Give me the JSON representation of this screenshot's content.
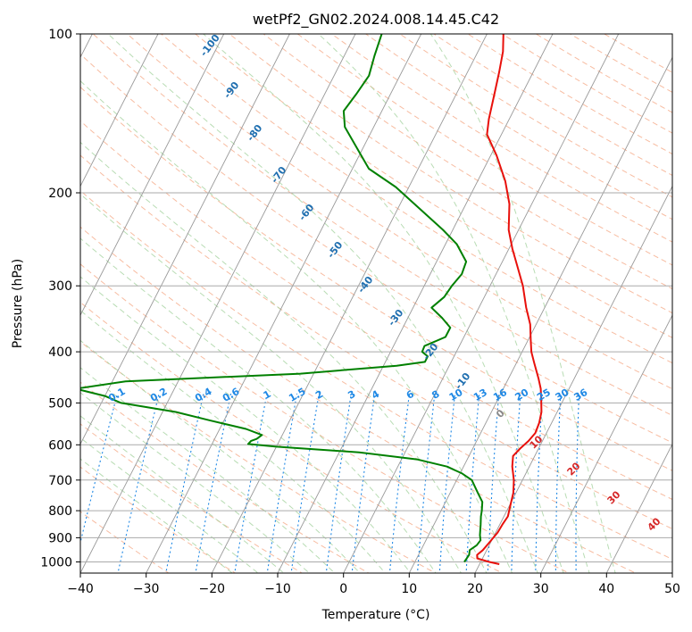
{
  "chart_data": {
    "type": "line",
    "subtype": "skew-t log-p diagram",
    "title": "wetPf2_GN02.2024.008.14.45.C42",
    "xlabel": "Temperature (°C)",
    "ylabel": "Pressure (hPa)",
    "xlim": [
      -40,
      50
    ],
    "ylim": [
      1050,
      100
    ],
    "y_scale": "log",
    "x_ticks": [
      -40,
      -30,
      -20,
      -10,
      0,
      10,
      20,
      30,
      40,
      50
    ],
    "x_tick_labels": [
      "−40",
      "−30",
      "−20",
      "−10",
      "0",
      "10",
      "20",
      "30",
      "40",
      "50"
    ],
    "y_ticks": [
      100,
      200,
      300,
      400,
      500,
      600,
      700,
      800,
      900,
      1000
    ],
    "y_tick_labels": [
      "100",
      "200",
      "300",
      "400",
      "500",
      "600",
      "700",
      "800",
      "900",
      "1000"
    ],
    "grid": true,
    "series": [
      {
        "role": "temperature",
        "color": "#e8100b",
        "points": [
          [
            1010,
            23
          ],
          [
            1000,
            21.3
          ],
          [
            985,
            19.2
          ],
          [
            970,
            18.9
          ],
          [
            950,
            19.4
          ],
          [
            920,
            19.8
          ],
          [
            880,
            20.3
          ],
          [
            850,
            20.4
          ],
          [
            820,
            20.6
          ],
          [
            780,
            20.1
          ],
          [
            740,
            19.6
          ],
          [
            700,
            18.7
          ],
          [
            660,
            17.4
          ],
          [
            630,
            16.7
          ],
          [
            610,
            17.2
          ],
          [
            590,
            17.9
          ],
          [
            570,
            18.3
          ],
          [
            545,
            18.1
          ],
          [
            520,
            17.6
          ],
          [
            490,
            16.5
          ],
          [
            470,
            15.7
          ],
          [
            450,
            14.6
          ],
          [
            420,
            12.7
          ],
          [
            400,
            11.4
          ],
          [
            380,
            10.4
          ],
          [
            355,
            9.1
          ],
          [
            330,
            7.2
          ],
          [
            300,
            5.0
          ],
          [
            275,
            2.6
          ],
          [
            255,
            0.5
          ],
          [
            235,
            -1.5
          ],
          [
            210,
            -3.4
          ],
          [
            190,
            -5.8
          ],
          [
            170,
            -9.1
          ],
          [
            155,
            -12.2
          ],
          [
            145,
            -13.1
          ],
          [
            130,
            -14.2
          ],
          [
            118,
            -15.2
          ],
          [
            108,
            -16.2
          ],
          [
            100,
            -17.5
          ]
        ]
      },
      {
        "role": "dewpoint",
        "color": "#008000",
        "points": [
          [
            1000,
            17.5
          ],
          [
            970,
            17.7
          ],
          [
            950,
            17.4
          ],
          [
            930,
            18.1
          ],
          [
            910,
            18.3
          ],
          [
            890,
            17.8
          ],
          [
            850,
            17.1
          ],
          [
            820,
            16.5
          ],
          [
            800,
            16.2
          ],
          [
            770,
            15.6
          ],
          [
            740,
            14.2
          ],
          [
            700,
            12.3
          ],
          [
            680,
            10.3
          ],
          [
            660,
            7.5
          ],
          [
            640,
            2.5
          ],
          [
            620,
            -7
          ],
          [
            605,
            -20
          ],
          [
            598,
            -24.5
          ],
          [
            590,
            -24.3
          ],
          [
            585,
            -23.6
          ],
          [
            575,
            -23.1
          ],
          [
            560,
            -26
          ],
          [
            540,
            -32
          ],
          [
            520,
            -38
          ],
          [
            500,
            -47
          ],
          [
            485,
            -50
          ],
          [
            470,
            -55
          ],
          [
            455,
            -48
          ],
          [
            440,
            -22
          ],
          [
            425,
            -8
          ],
          [
            418,
            -4
          ],
          [
            408,
            -4
          ],
          [
            400,
            -5.2
          ],
          [
            390,
            -5.3
          ],
          [
            375,
            -2.8
          ],
          [
            360,
            -2.8
          ],
          [
            345,
            -4.8
          ],
          [
            330,
            -7.2
          ],
          [
            315,
            -6.1
          ],
          [
            300,
            -5.8
          ],
          [
            285,
            -5.2
          ],
          [
            270,
            -5.5
          ],
          [
            250,
            -8.3
          ],
          [
            235,
            -11.5
          ],
          [
            215,
            -16.5
          ],
          [
            195,
            -22
          ],
          [
            180,
            -27.5
          ],
          [
            165,
            -30.8
          ],
          [
            150,
            -34.4
          ],
          [
            140,
            -35.8
          ],
          [
            130,
            -35.2
          ],
          [
            120,
            -34.7
          ],
          [
            110,
            -35.4
          ],
          [
            100,
            -36
          ]
        ]
      }
    ],
    "reference_lines": {
      "isotherms_skewed": true,
      "dry_adiabats": true,
      "moist_adiabats": true,
      "mixing_ratio_lines": true
    },
    "dry_adiabat_labels": [
      "-100",
      "-90",
      "-80",
      "-70",
      "-60",
      "-50",
      "-40",
      "-30",
      "-20",
      "-10"
    ],
    "moist_adiabat_labels": [
      "0",
      "10",
      "20",
      "30",
      "40"
    ],
    "mixing_ratio_labels": [
      "0.1",
      "0.2",
      "0.4",
      "0.6",
      "1",
      "1.5",
      "2",
      "3",
      "4",
      "6",
      "8",
      "10",
      "13",
      "16",
      "20",
      "25",
      "30",
      "36"
    ],
    "colors": {
      "isotherm": "#999999",
      "isobar": "#aaaaaa",
      "dry_adiabat": "#f4a582",
      "moist_adiabat": "#a6d3a0",
      "mixing_ratio": "#1e88e5",
      "dry_label": "#1f6fb0",
      "moist_label": "#d62728"
    }
  }
}
